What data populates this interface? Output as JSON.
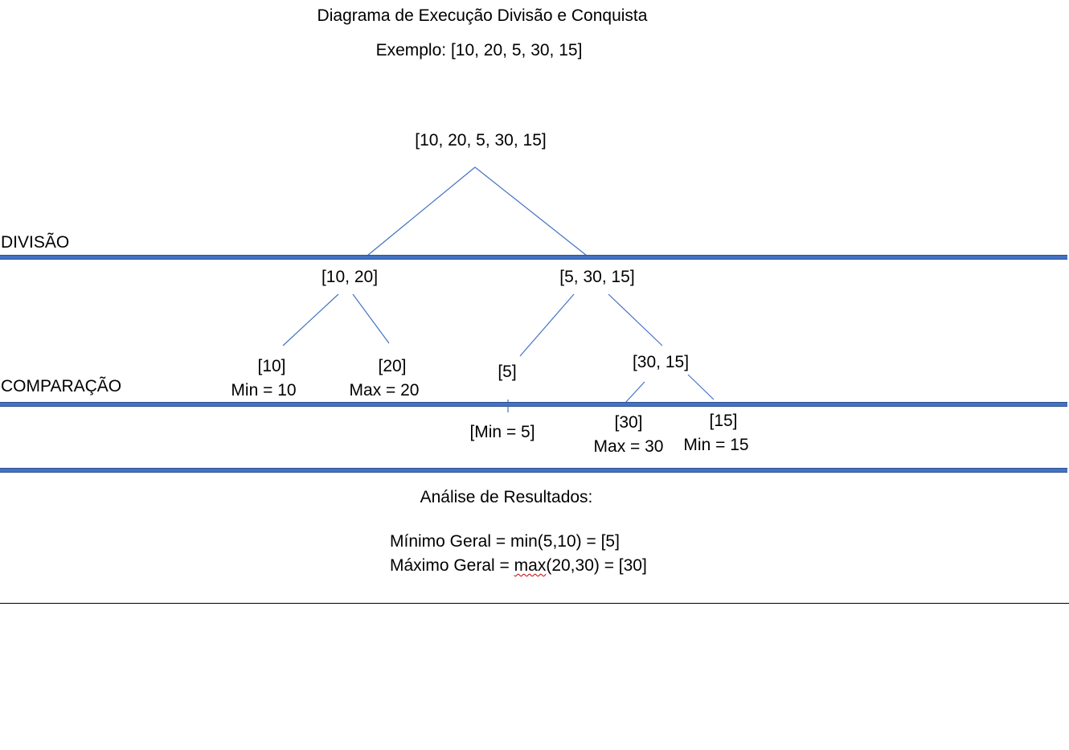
{
  "header": {
    "title": "Diagrama de Execução Divisão e Conquista",
    "example": "Exemplo: [10, 20, 5, 30, 15]"
  },
  "sections": {
    "division": "DIVISÃO",
    "comparison": "COMPARAÇÃO"
  },
  "tree": {
    "root": "[10, 20, 5, 30, 15]",
    "left": "[10, 20]",
    "right": "[5, 30, 15]",
    "leaf_10": "[10]",
    "leaf_10_result": "Min = 10",
    "leaf_20": "[20]",
    "leaf_20_result": "Max = 20",
    "leaf_5": "[5]",
    "leaf_5_result": "[Min = 5]",
    "node_30_15": "[30, 15]",
    "leaf_30": "[30]",
    "leaf_30_result": "Max = 30",
    "leaf_15": "[15]",
    "leaf_15_result": "Min = 15"
  },
  "analysis": {
    "heading": "Análise de Resultados:",
    "min_line": "Mínimo Geral = min(5,10) =  [5]",
    "max_prefix": "Máximo Geral = ",
    "max_fn": "max",
    "max_suffix": "(20,30) = [30]"
  },
  "colors": {
    "connector": "#4472c4",
    "band": "#4472c4",
    "spellcheck": "#c00000"
  }
}
